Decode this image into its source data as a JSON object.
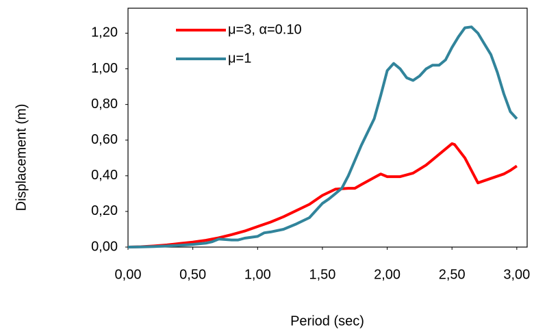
{
  "chart_data": {
    "type": "line",
    "xlabel": "Period (sec)",
    "ylabel": "Displacement (m)",
    "xlim": [
      0,
      3.08
    ],
    "ylim": [
      0,
      1.34
    ],
    "xticks": [
      {
        "value": 0,
        "label": "0,00"
      },
      {
        "value": 0.5,
        "label": "0,50"
      },
      {
        "value": 1,
        "label": "1,00"
      },
      {
        "value": 1.5,
        "label": "1,50"
      },
      {
        "value": 2,
        "label": "2,00"
      },
      {
        "value": 2.5,
        "label": "2,50"
      },
      {
        "value": 3,
        "label": "3,00"
      }
    ],
    "yticks": [
      {
        "value": 0,
        "label": "0,00"
      },
      {
        "value": 0.2,
        "label": "0,20"
      },
      {
        "value": 0.4,
        "label": "0,40"
      },
      {
        "value": 0.6,
        "label": "0,60"
      },
      {
        "value": 0.8,
        "label": "0,80"
      },
      {
        "value": 1,
        "label": "1,00"
      },
      {
        "value": 1.2,
        "label": "1,20"
      }
    ],
    "legend": "top-left",
    "series": [
      {
        "name": "μ=3, α=0.10",
        "color": "#ff0000",
        "x": [
          0,
          0.1,
          0.2,
          0.3,
          0.4,
          0.5,
          0.6,
          0.7,
          0.8,
          0.9,
          1.0,
          1.1,
          1.2,
          1.3,
          1.4,
          1.5,
          1.6,
          1.7,
          1.75,
          1.8,
          1.9,
          1.95,
          2.0,
          2.1,
          2.2,
          2.3,
          2.4,
          2.5,
          2.52,
          2.6,
          2.65,
          2.7,
          2.8,
          2.9,
          2.95,
          3.0
        ],
        "values": [
          0,
          0.002,
          0.006,
          0.012,
          0.02,
          0.028,
          0.038,
          0.052,
          0.07,
          0.09,
          0.115,
          0.14,
          0.17,
          0.205,
          0.24,
          0.29,
          0.325,
          0.33,
          0.33,
          0.35,
          0.39,
          0.41,
          0.395,
          0.395,
          0.415,
          0.46,
          0.52,
          0.58,
          0.575,
          0.5,
          0.43,
          0.36,
          0.385,
          0.41,
          0.43,
          0.455
        ]
      },
      {
        "name": "μ=1",
        "color": "#31849b",
        "x": [
          0,
          0.1,
          0.2,
          0.3,
          0.4,
          0.5,
          0.6,
          0.65,
          0.7,
          0.8,
          0.85,
          0.9,
          1.0,
          1.05,
          1.1,
          1.2,
          1.3,
          1.4,
          1.5,
          1.55,
          1.6,
          1.65,
          1.7,
          1.8,
          1.9,
          1.95,
          2.0,
          2.05,
          2.1,
          2.15,
          2.2,
          2.25,
          2.3,
          2.35,
          2.4,
          2.45,
          2.5,
          2.55,
          2.6,
          2.65,
          2.7,
          2.75,
          2.8,
          2.85,
          2.9,
          2.95,
          3.0
        ],
        "values": [
          0,
          0.001,
          0.003,
          0.006,
          0.01,
          0.015,
          0.022,
          0.03,
          0.045,
          0.04,
          0.04,
          0.05,
          0.06,
          0.08,
          0.085,
          0.1,
          0.13,
          0.165,
          0.245,
          0.27,
          0.3,
          0.33,
          0.4,
          0.57,
          0.72,
          0.85,
          0.99,
          1.03,
          1.0,
          0.95,
          0.935,
          0.96,
          1.0,
          1.02,
          1.02,
          1.05,
          1.12,
          1.18,
          1.23,
          1.235,
          1.2,
          1.14,
          1.08,
          0.98,
          0.86,
          0.76,
          0.72
        ]
      }
    ]
  }
}
